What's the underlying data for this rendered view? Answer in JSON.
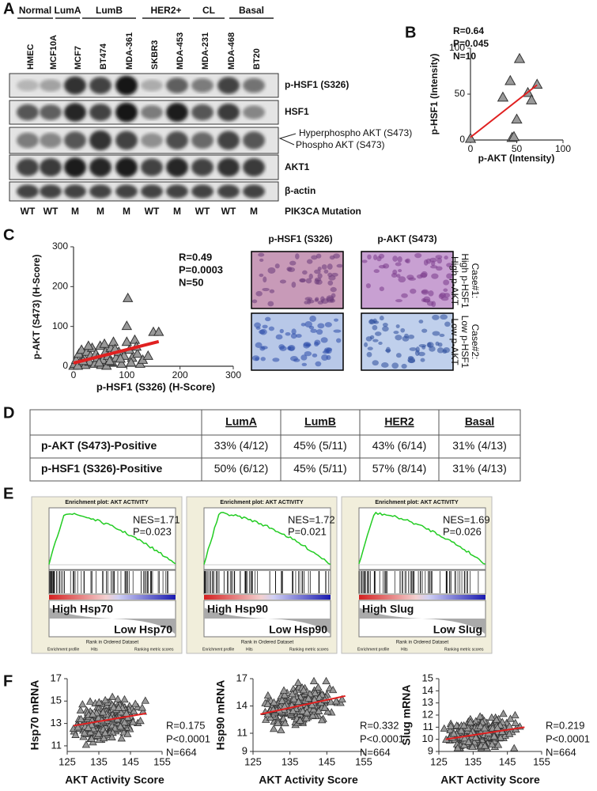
{
  "panel_labels": [
    "A",
    "B",
    "C",
    "D",
    "E",
    "F"
  ],
  "panel_a": {
    "groups": [
      "Normal",
      "LumA",
      "LumB",
      "HER2+",
      "CL",
      "Basal"
    ],
    "cell_lines": [
      "HMEC",
      "MCF10A",
      "MCF7",
      "BT474",
      "MDA-361",
      "SKBR3",
      "MDA-453",
      "MDA-231",
      "MDA-468",
      "BT20"
    ],
    "blot_labels": [
      "p-HSF1 (S326)",
      "HSF1",
      "Hyperphospho  AKT (S473)",
      "Phospho AKT (S473)",
      "AKT1",
      "β-actin"
    ],
    "mutation": [
      "WT",
      "WT",
      "M",
      "M",
      "M",
      "WT",
      "M",
      "WT",
      "WT",
      "M"
    ],
    "mutation_label": "PIK3CA Mutation"
  },
  "panel_b": {
    "type": "scatter",
    "stats": [
      "R=0.64",
      "P=0.045",
      "N=10"
    ],
    "ylabel": "p-HSF1 (Intensity)",
    "xlabel": "p-AKT  (Intensity)",
    "xlim": [
      0,
      100
    ],
    "ylim": [
      0,
      100
    ],
    "xticks": [
      0,
      50,
      100
    ],
    "yticks": [
      0,
      50,
      100
    ],
    "x": [
      0,
      35,
      43,
      45,
      47,
      50,
      53,
      62,
      66,
      72
    ],
    "y": [
      1,
      46,
      64,
      2,
      3,
      22,
      88,
      51,
      43,
      60
    ],
    "fit_line": {
      "x": [
        0,
        72
      ],
      "y": [
        3,
        60
      ]
    }
  },
  "panel_c": {
    "type": "scatter",
    "stats": [
      "R=0.49",
      "P=0.0003",
      "N=50"
    ],
    "ylabel": "p-AKT (S473) (H-Score)",
    "xlabel": "p-HSF1 (S326) (H-Score)",
    "xlim": [
      0,
      300
    ],
    "ylim": [
      0,
      300
    ],
    "xticks": [
      0,
      100,
      200,
      300
    ],
    "yticks": [
      0,
      100,
      200,
      300
    ],
    "fit_line": {
      "x": [
        0,
        160
      ],
      "y": [
        8,
        62
      ]
    },
    "image_headers": [
      "p-HSF1 (S326)",
      "p-AKT  (S473)"
    ],
    "cases": [
      [
        "Case#1:",
        "High p-HSF1",
        "High p-AKT"
      ],
      [
        "Case#2:",
        "Low p-HSF1",
        "Low p-AKT"
      ]
    ]
  },
  "panel_d": {
    "header": [
      "LumA",
      "LumB",
      "HER2",
      "Basal"
    ],
    "rows": [
      [
        "p-AKT (S473)-Positive",
        "33% (4/12)",
        "45% (5/11)",
        "43% (6/14)",
        "31% (4/13)"
      ],
      [
        "p-HSF1 (S326)-Positive",
        "50% (6/12)",
        "45% (5/11)",
        "57% (8/14)",
        "31% (4/13)"
      ]
    ]
  },
  "panel_e": {
    "plots": [
      {
        "title": "Enrichment plot: AKT ACTIVITY",
        "stats": [
          "NES=1.71",
          "P=0.023"
        ],
        "high": "High Hsp70",
        "low": "Low Hsp70"
      },
      {
        "title": "Enrichment plot: AKT ACTIVITY",
        "stats": [
          "NES=1.72",
          "P=0.021"
        ],
        "high": "High Hsp90",
        "low": "Low Hsp90"
      },
      {
        "title": "Enrichment plot: AKT ACTIVITY",
        "stats": [
          "NES=1.69",
          "P=0.026"
        ],
        "high": "High Slug",
        "low": "Low Slug"
      }
    ],
    "xlabel": "Rank in Ordered Dataset",
    "legend": [
      "Enrichment profile",
      "Hits",
      "Ranking metric scores"
    ]
  },
  "panel_f": {
    "xlabel": "AKT Activity Score",
    "xlim": [
      125,
      155
    ],
    "xticks": [
      125,
      135,
      145,
      155
    ],
    "plots": [
      {
        "ylabel": "Hsp70 mRNA",
        "ylim": [
          10.5,
          17
        ],
        "yticks": [
          11,
          13,
          15,
          17
        ],
        "fit_line": {
          "x": [
            127,
            150
          ],
          "y": [
            12.8,
            13.9
          ]
        },
        "stats": [
          "R=0.175",
          "P<0.0001",
          "N=664"
        ]
      },
      {
        "ylabel": "Hsp90 mRNA",
        "ylim": [
          9,
          17
        ],
        "yticks": [
          9,
          11,
          14,
          17
        ],
        "fit_line": {
          "x": [
            127,
            150
          ],
          "y": [
            13.1,
            15.1
          ]
        },
        "stats": [
          "R=0.332",
          "P<0.0001",
          "N=664"
        ]
      },
      {
        "ylabel": "Slug mRNA",
        "ylim": [
          9,
          15
        ],
        "yticks": [
          9,
          10,
          11,
          12,
          13,
          14,
          15
        ],
        "fit_line": {
          "x": [
            127,
            150
          ],
          "y": [
            10,
            11
          ]
        },
        "stats": [
          "R=0.219",
          "P<0.0001",
          "N=664"
        ]
      }
    ]
  }
}
